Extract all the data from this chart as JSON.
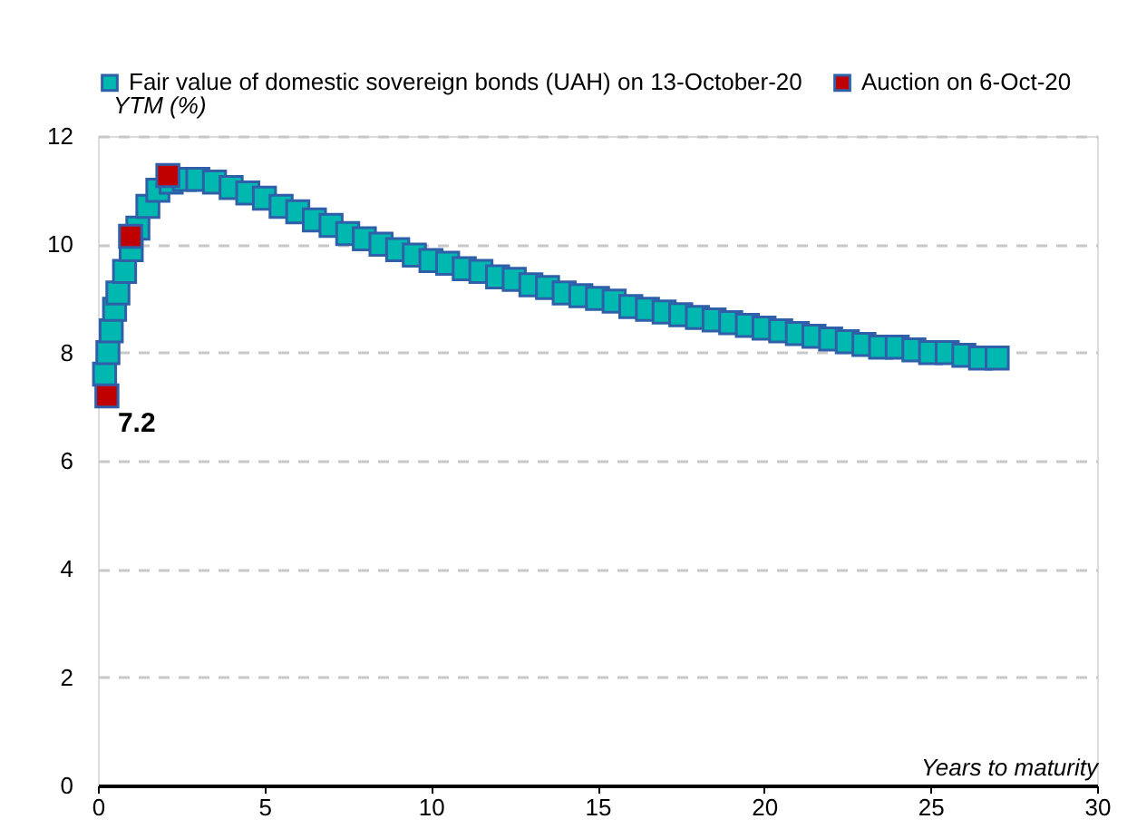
{
  "chart_data": {
    "type": "scatter",
    "xlabel": "Years to maturity",
    "ylabel": "YTM (%)",
    "xlim": [
      0,
      30
    ],
    "xticks": [
      0,
      5,
      10,
      15,
      20,
      25,
      30
    ],
    "ylim": [
      0,
      12
    ],
    "yticks": [
      0,
      2,
      4,
      6,
      8,
      10,
      12
    ],
    "grid": "y",
    "legend": "top left",
    "marker": "square",
    "series": [
      {
        "name": "Fair value of domestic sovereign bonds (UAH) on 13-October-20",
        "color": "#00b8b0",
        "x": [
          0.2,
          0.3,
          0.4,
          0.5,
          0.6,
          0.8,
          1.0,
          1.2,
          1.5,
          1.8,
          2.2,
          2.6,
          3,
          3.5,
          4,
          4.5,
          5,
          5.5,
          6,
          6.5,
          7,
          7.5,
          8,
          8.5,
          9,
          9.5,
          10,
          10.5,
          11,
          11.5,
          12,
          12.5,
          13,
          13.5,
          14,
          14.5,
          15,
          15.5,
          16,
          16.5,
          17,
          17.5,
          18,
          18.5,
          19,
          19.5,
          20,
          20.5,
          21,
          21.5,
          22,
          22.5,
          23,
          23.5,
          24,
          24.5,
          25,
          25.5,
          26,
          26.5,
          27
        ],
        "values": [
          7.6,
          8.0,
          8.4,
          8.8,
          9.1,
          9.5,
          9.9,
          10.3,
          10.7,
          11.0,
          11.15,
          11.2,
          11.2,
          11.15,
          11.05,
          10.95,
          10.85,
          10.7,
          10.6,
          10.45,
          10.35,
          10.2,
          10.1,
          10.0,
          9.9,
          9.8,
          9.7,
          9.65,
          9.55,
          9.5,
          9.4,
          9.35,
          9.25,
          9.2,
          9.1,
          9.05,
          9.0,
          8.95,
          8.85,
          8.8,
          8.75,
          8.7,
          8.65,
          8.6,
          8.55,
          8.5,
          8.45,
          8.4,
          8.35,
          8.3,
          8.25,
          8.2,
          8.15,
          8.1,
          8.1,
          8.05,
          8.0,
          8.0,
          7.95,
          7.9,
          7.9
        ]
      },
      {
        "name": "Auction on 6-Oct-20",
        "color": "#c00000",
        "x": [
          0.27,
          0.98,
          2.1
        ],
        "values": [
          7.2,
          10.15,
          11.27
        ]
      }
    ],
    "annotations": [
      {
        "text": "7.2",
        "x": 0.27,
        "y": 7.2
      }
    ]
  }
}
